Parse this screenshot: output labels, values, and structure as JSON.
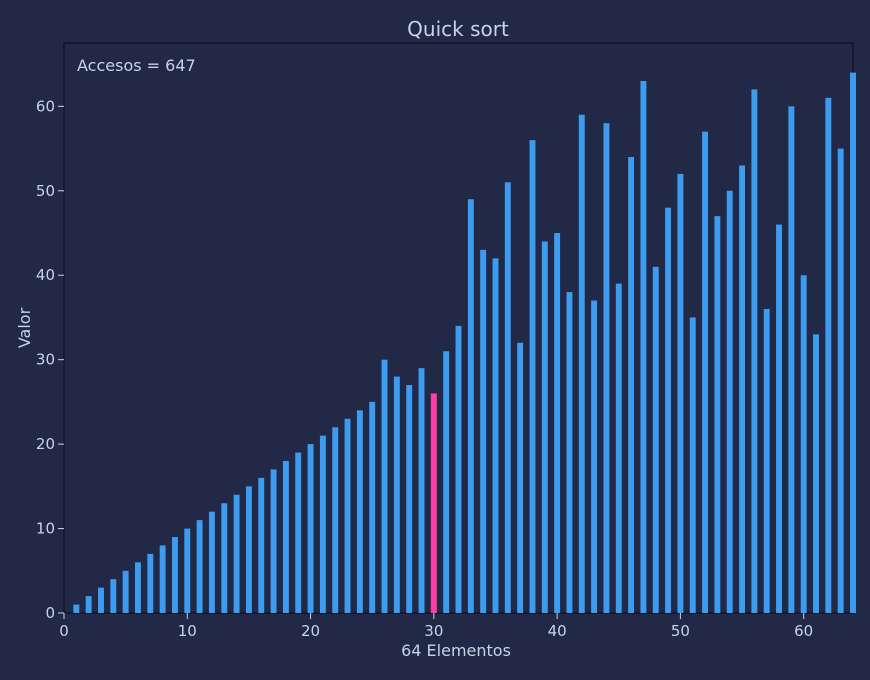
{
  "chart_data": {
    "type": "bar",
    "title": "Quick sort",
    "xlabel": "64 Elementos",
    "ylabel": "Valor",
    "annotation": "Accesos = 647",
    "xlim": [
      0,
      64
    ],
    "ylim": [
      0,
      67.5
    ],
    "xticks": [
      0,
      10,
      20,
      30,
      40,
      50,
      60
    ],
    "yticks": [
      0,
      10,
      20,
      30,
      40,
      50,
      60
    ],
    "grid": false,
    "legend": "none",
    "x": [
      1,
      2,
      3,
      4,
      5,
      6,
      7,
      8,
      9,
      10,
      11,
      12,
      13,
      14,
      15,
      16,
      17,
      18,
      19,
      20,
      21,
      22,
      23,
      24,
      25,
      26,
      27,
      28,
      29,
      30,
      31,
      32,
      33,
      34,
      35,
      36,
      37,
      38,
      39,
      40,
      41,
      42,
      43,
      44,
      45,
      46,
      47,
      48,
      49,
      50,
      51,
      52,
      53,
      54,
      55,
      56,
      57,
      58,
      59,
      60,
      61,
      62,
      63,
      64
    ],
    "values": [
      1,
      2,
      3,
      4,
      5,
      6,
      7,
      8,
      9,
      10,
      11,
      12,
      13,
      14,
      15,
      16,
      17,
      18,
      19,
      20,
      21,
      22,
      23,
      24,
      25,
      30,
      28,
      27,
      29,
      26,
      31,
      34,
      49,
      43,
      42,
      51,
      32,
      56,
      44,
      45,
      38,
      59,
      37,
      58,
      39,
      54,
      63,
      41,
      48,
      52,
      35,
      57,
      47,
      50,
      53,
      62,
      36,
      46,
      60,
      40,
      33,
      61,
      55,
      64
    ],
    "highlight_index": 29,
    "colors": {
      "background": "#212946",
      "bar": "#3d9bf0",
      "highlight": "#ff3ea5",
      "text": "#c8d3e6",
      "axis": "#0f1220"
    }
  }
}
